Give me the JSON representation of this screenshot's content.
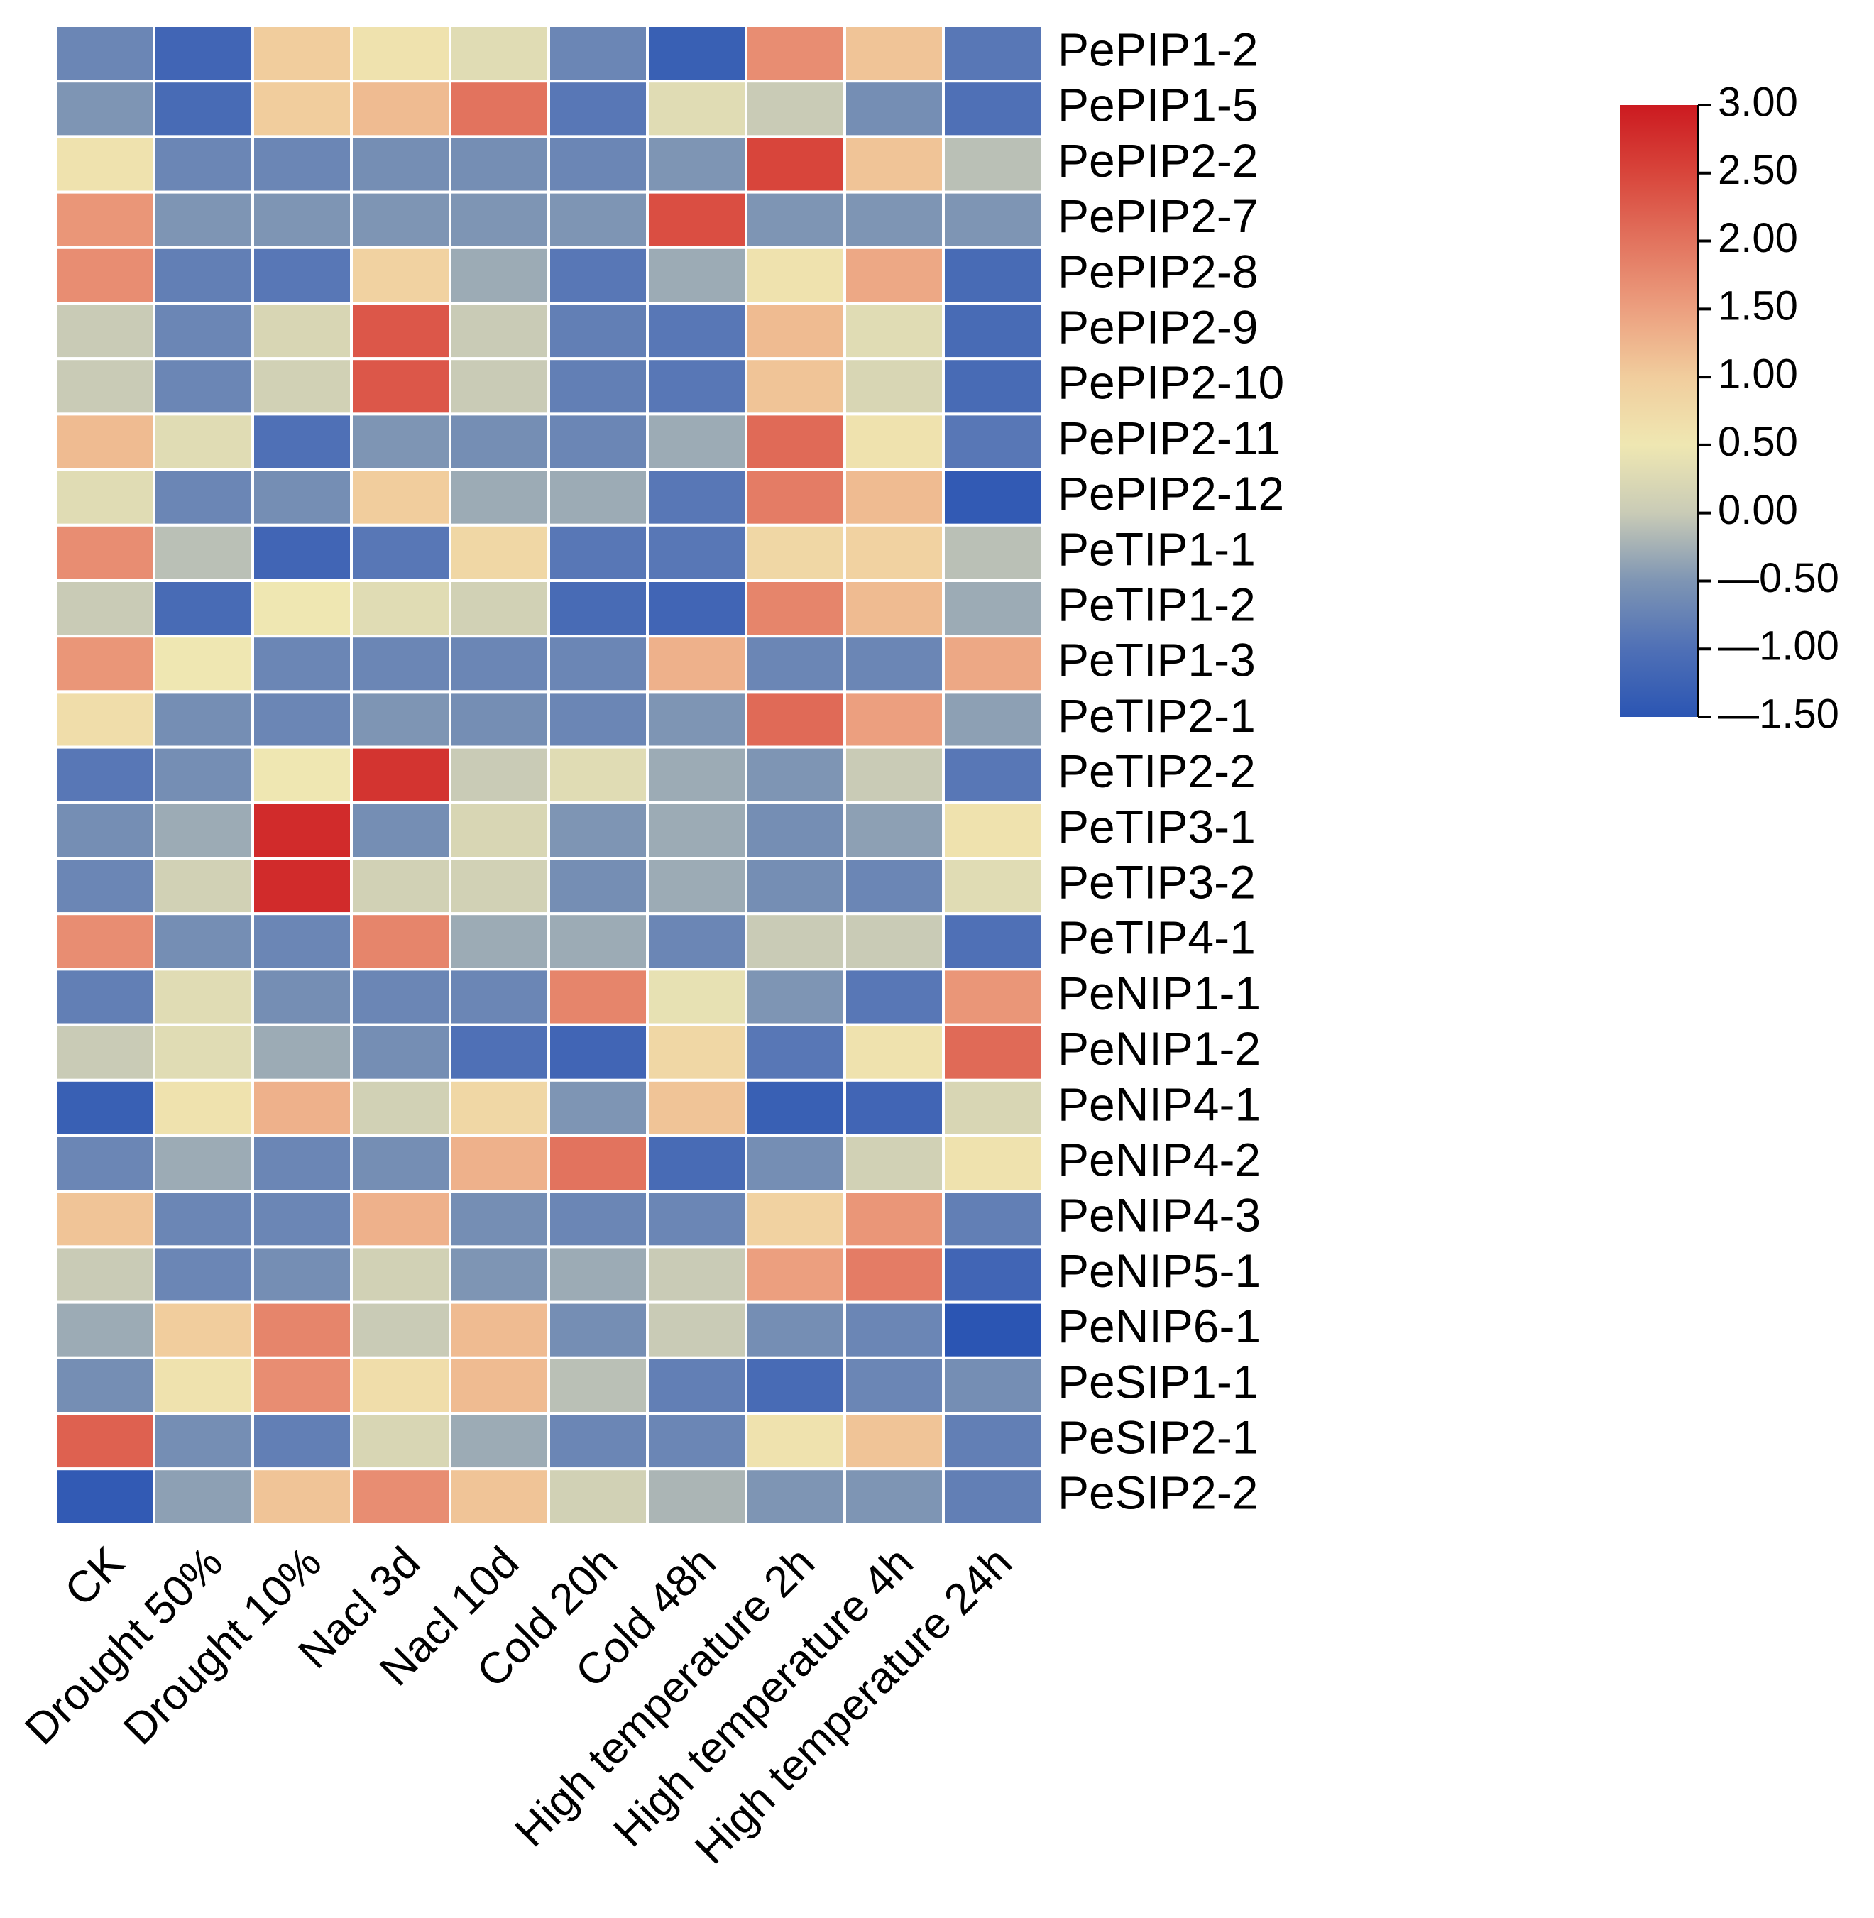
{
  "chart_data": {
    "type": "heatmap",
    "title": "",
    "xlabel": "",
    "ylabel": "",
    "columns": [
      "CK",
      "Drought 50%",
      "Drought 10%",
      "Nacl 3d",
      "Nacl 10d",
      "Cold 20h",
      "Cold 48h",
      "High temperature 2h",
      "High temperature 4h",
      "High temperature 24h"
    ],
    "rows": [
      "PePIP1-2",
      "PePIP1-5",
      "PePIP2-2",
      "PePIP2-7",
      "PePIP2-8",
      "PePIP2-9",
      "PePIP2-10",
      "PePIP2-11",
      "PePIP2-12",
      "PeTIP1-1",
      "PeTIP1-2",
      "PeTIP1-3",
      "PeTIP2-1",
      "PeTIP2-2",
      "PeTIP3-1",
      "PeTIP3-2",
      "PeTIP4-1",
      "PeNIP1-1",
      "PeNIP1-2",
      "PeNIP4-1",
      "PeNIP4-2",
      "PeNIP4-3",
      "PeNIP5-1",
      "PeNIP6-1",
      "PeSIP1-1",
      "PeSIP2-1",
      "PeSIP2-2"
    ],
    "values": [
      [
        -0.7,
        -1.2,
        1.0,
        0.6,
        0.3,
        -0.7,
        -1.3,
        1.7,
        1.1,
        -0.9
      ],
      [
        -0.5,
        -1.1,
        1.0,
        1.2,
        2.0,
        -0.9,
        0.3,
        0.0,
        -0.6,
        -1.0
      ],
      [
        0.6,
        -0.7,
        -0.7,
        -0.6,
        -0.6,
        -0.7,
        -0.5,
        2.5,
        1.1,
        -0.1
      ],
      [
        1.6,
        -0.5,
        -0.5,
        -0.5,
        -0.5,
        -0.5,
        2.4,
        -0.5,
        -0.5,
        -0.5
      ],
      [
        1.7,
        -0.8,
        -0.9,
        0.9,
        -0.3,
        -0.9,
        -0.3,
        0.6,
        1.4,
        -1.1
      ],
      [
        0.0,
        -0.7,
        0.2,
        2.3,
        0.0,
        -0.8,
        -0.9,
        1.2,
        0.3,
        -1.1
      ],
      [
        0.0,
        -0.7,
        0.1,
        2.3,
        0.0,
        -0.8,
        -0.9,
        1.1,
        0.2,
        -1.1
      ],
      [
        1.2,
        0.3,
        -1.0,
        -0.5,
        -0.6,
        -0.7,
        -0.3,
        2.1,
        0.6,
        -0.9
      ],
      [
        0.3,
        -0.7,
        -0.6,
        1.0,
        -0.3,
        -0.3,
        -0.9,
        1.9,
        1.2,
        -1.4
      ],
      [
        1.7,
        -0.1,
        -1.2,
        -0.9,
        0.8,
        -0.9,
        -0.9,
        0.8,
        0.9,
        -0.1
      ],
      [
        0.0,
        -1.1,
        0.5,
        0.3,
        0.1,
        -1.1,
        -1.2,
        1.8,
        1.2,
        -0.3
      ],
      [
        1.6,
        0.5,
        -0.7,
        -0.7,
        -0.7,
        -0.7,
        1.3,
        -0.7,
        -0.7,
        1.4
      ],
      [
        0.7,
        -0.6,
        -0.7,
        -0.5,
        -0.6,
        -0.7,
        -0.5,
        2.1,
        1.5,
        -0.4
      ],
      [
        -0.9,
        -0.6,
        0.5,
        2.7,
        0.0,
        0.3,
        -0.3,
        -0.5,
        0.0,
        -0.9
      ],
      [
        -0.6,
        -0.3,
        2.8,
        -0.6,
        0.2,
        -0.5,
        -0.3,
        -0.6,
        -0.4,
        0.6
      ],
      [
        -0.7,
        0.1,
        2.8,
        0.1,
        0.1,
        -0.6,
        -0.3,
        -0.6,
        -0.7,
        0.3
      ],
      [
        1.7,
        -0.6,
        -0.7,
        1.8,
        -0.3,
        -0.3,
        -0.7,
        0.0,
        0.0,
        -1.0
      ],
      [
        -0.8,
        0.3,
        -0.6,
        -0.7,
        -0.7,
        1.8,
        0.4,
        -0.5,
        -0.9,
        1.6
      ],
      [
        0.0,
        0.3,
        -0.3,
        -0.6,
        -1.0,
        -1.2,
        0.8,
        -0.9,
        0.6,
        2.1
      ],
      [
        -1.3,
        0.6,
        1.3,
        0.1,
        0.8,
        -0.5,
        1.1,
        -1.3,
        -1.2,
        0.2
      ],
      [
        -0.7,
        -0.3,
        -0.7,
        -0.6,
        1.3,
        2.0,
        -1.1,
        -0.6,
        0.1,
        0.6
      ],
      [
        1.1,
        -0.7,
        -0.7,
        1.3,
        -0.6,
        -0.7,
        -0.7,
        0.9,
        1.6,
        -0.8
      ],
      [
        0.0,
        -0.7,
        -0.6,
        0.1,
        -0.5,
        -0.3,
        0.0,
        1.5,
        1.9,
        -1.2
      ],
      [
        -0.3,
        1.0,
        1.8,
        0.0,
        1.2,
        -0.6,
        0.0,
        -0.6,
        -0.7,
        -1.5
      ],
      [
        -0.6,
        0.6,
        1.7,
        0.7,
        1.2,
        -0.1,
        -0.8,
        -1.1,
        -0.7,
        -0.6
      ],
      [
        2.2,
        -0.6,
        -0.8,
        0.2,
        -0.3,
        -0.7,
        -0.7,
        0.6,
        1.1,
        -0.8
      ],
      [
        -1.4,
        -0.4,
        1.1,
        1.7,
        1.1,
        0.1,
        -0.2,
        -0.5,
        -0.5,
        -0.8
      ]
    ],
    "colorbar": {
      "min": -1.5,
      "max": 3.0,
      "ticks": [
        3.0,
        2.5,
        2.0,
        1.5,
        1.0,
        0.5,
        0.0,
        -0.5,
        -1.0,
        -1.5
      ],
      "tick_labels": [
        "3.00",
        "2.50",
        "2.00",
        "1.50",
        "1.00",
        "0.50",
        "0.00",
        "—0.50",
        "—1.00",
        "—1.50"
      ],
      "stops": [
        {
          "value": -1.5,
          "color": "#2b55b3"
        },
        {
          "value": -1.0,
          "color": "#4f70b6"
        },
        {
          "value": -0.5,
          "color": "#7e95b4"
        },
        {
          "value": 0.0,
          "color": "#c9cbb6"
        },
        {
          "value": 0.5,
          "color": "#efe7b2"
        },
        {
          "value": 1.0,
          "color": "#f1cd9d"
        },
        {
          "value": 1.5,
          "color": "#ec9f7f"
        },
        {
          "value": 2.0,
          "color": "#e2735e"
        },
        {
          "value": 2.5,
          "color": "#d8453b"
        },
        {
          "value": 3.0,
          "color": "#cc1a20"
        }
      ]
    }
  }
}
